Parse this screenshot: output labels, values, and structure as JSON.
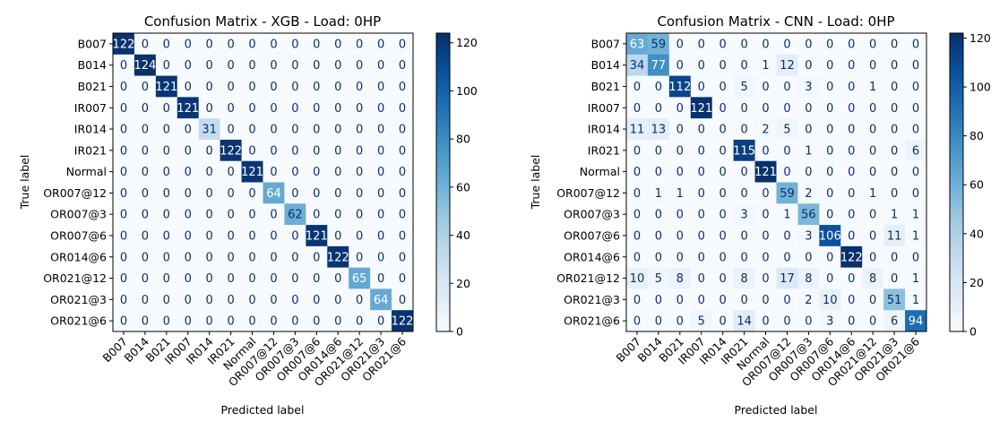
{
  "chart_data": [
    {
      "type": "heatmap",
      "title": "Confusion Matrix - XGB - Load: 0HP",
      "xlabel": "Predicted label",
      "ylabel": "True label",
      "labels": [
        "B007",
        "B014",
        "B021",
        "IR007",
        "IR014",
        "IR021",
        "Normal",
        "OR007@12",
        "OR007@3",
        "OR007@6",
        "OR014@6",
        "OR021@12",
        "OR021@3",
        "OR021@6"
      ],
      "colormap": "Blues",
      "vmin": 0,
      "vmax": 124,
      "colorbar_ticks": [
        0,
        20,
        40,
        60,
        80,
        100,
        120
      ],
      "matrix": [
        [
          122,
          0,
          0,
          0,
          0,
          0,
          0,
          0,
          0,
          0,
          0,
          0,
          0,
          0
        ],
        [
          0,
          124,
          0,
          0,
          0,
          0,
          0,
          0,
          0,
          0,
          0,
          0,
          0,
          0
        ],
        [
          0,
          0,
          121,
          0,
          0,
          0,
          0,
          0,
          0,
          0,
          0,
          0,
          0,
          0
        ],
        [
          0,
          0,
          0,
          121,
          0,
          0,
          0,
          0,
          0,
          0,
          0,
          0,
          0,
          0
        ],
        [
          0,
          0,
          0,
          0,
          31,
          0,
          0,
          0,
          0,
          0,
          0,
          0,
          0,
          0
        ],
        [
          0,
          0,
          0,
          0,
          0,
          122,
          0,
          0,
          0,
          0,
          0,
          0,
          0,
          0
        ],
        [
          0,
          0,
          0,
          0,
          0,
          0,
          121,
          0,
          0,
          0,
          0,
          0,
          0,
          0
        ],
        [
          0,
          0,
          0,
          0,
          0,
          0,
          0,
          64,
          0,
          0,
          0,
          0,
          0,
          0
        ],
        [
          0,
          0,
          0,
          0,
          0,
          0,
          0,
          0,
          62,
          0,
          0,
          0,
          0,
          0
        ],
        [
          0,
          0,
          0,
          0,
          0,
          0,
          0,
          0,
          0,
          121,
          0,
          0,
          0,
          0
        ],
        [
          0,
          0,
          0,
          0,
          0,
          0,
          0,
          0,
          0,
          0,
          122,
          0,
          0,
          0
        ],
        [
          0,
          0,
          0,
          0,
          0,
          0,
          0,
          0,
          0,
          0,
          0,
          65,
          0,
          0
        ],
        [
          0,
          0,
          0,
          0,
          0,
          0,
          0,
          0,
          0,
          0,
          0,
          0,
          64,
          0
        ],
        [
          0,
          0,
          0,
          0,
          0,
          0,
          0,
          0,
          0,
          0,
          0,
          0,
          0,
          122
        ]
      ]
    },
    {
      "type": "heatmap",
      "title": "Confusion Matrix - CNN - Load: 0HP",
      "xlabel": "Predicted label",
      "ylabel": "True label",
      "labels": [
        "B007",
        "B014",
        "B021",
        "IR007",
        "IR014",
        "IR021",
        "Normal",
        "OR007@12",
        "OR007@3",
        "OR007@6",
        "OR014@6",
        "OR021@12",
        "OR021@3",
        "OR021@6"
      ],
      "colormap": "Blues",
      "vmin": 0,
      "vmax": 122,
      "colorbar_ticks": [
        0,
        20,
        40,
        60,
        80,
        100,
        120
      ],
      "matrix": [
        [
          63,
          59,
          0,
          0,
          0,
          0,
          0,
          0,
          0,
          0,
          0,
          0,
          0,
          0
        ],
        [
          34,
          77,
          0,
          0,
          0,
          0,
          1,
          12,
          0,
          0,
          0,
          0,
          0,
          0
        ],
        [
          0,
          0,
          112,
          0,
          0,
          5,
          0,
          0,
          3,
          0,
          0,
          1,
          0,
          0
        ],
        [
          0,
          0,
          0,
          121,
          0,
          0,
          0,
          0,
          0,
          0,
          0,
          0,
          0,
          0
        ],
        [
          11,
          13,
          0,
          0,
          0,
          0,
          2,
          5,
          0,
          0,
          0,
          0,
          0,
          0
        ],
        [
          0,
          0,
          0,
          0,
          0,
          115,
          0,
          0,
          1,
          0,
          0,
          0,
          0,
          6
        ],
        [
          0,
          0,
          0,
          0,
          0,
          0,
          121,
          0,
          0,
          0,
          0,
          0,
          0,
          0
        ],
        [
          0,
          1,
          1,
          0,
          0,
          0,
          0,
          59,
          2,
          0,
          0,
          1,
          0,
          0
        ],
        [
          0,
          0,
          0,
          0,
          0,
          3,
          0,
          1,
          56,
          0,
          0,
          0,
          1,
          1
        ],
        [
          0,
          0,
          0,
          0,
          0,
          0,
          0,
          0,
          3,
          106,
          0,
          0,
          11,
          1
        ],
        [
          0,
          0,
          0,
          0,
          0,
          0,
          0,
          0,
          0,
          0,
          122,
          0,
          0,
          0
        ],
        [
          10,
          5,
          8,
          0,
          0,
          8,
          0,
          17,
          8,
          0,
          0,
          8,
          0,
          1
        ],
        [
          0,
          0,
          0,
          0,
          0,
          0,
          0,
          0,
          2,
          10,
          0,
          0,
          51,
          1
        ],
        [
          0,
          0,
          0,
          5,
          0,
          14,
          0,
          0,
          0,
          3,
          0,
          0,
          6,
          94
        ]
      ]
    }
  ]
}
